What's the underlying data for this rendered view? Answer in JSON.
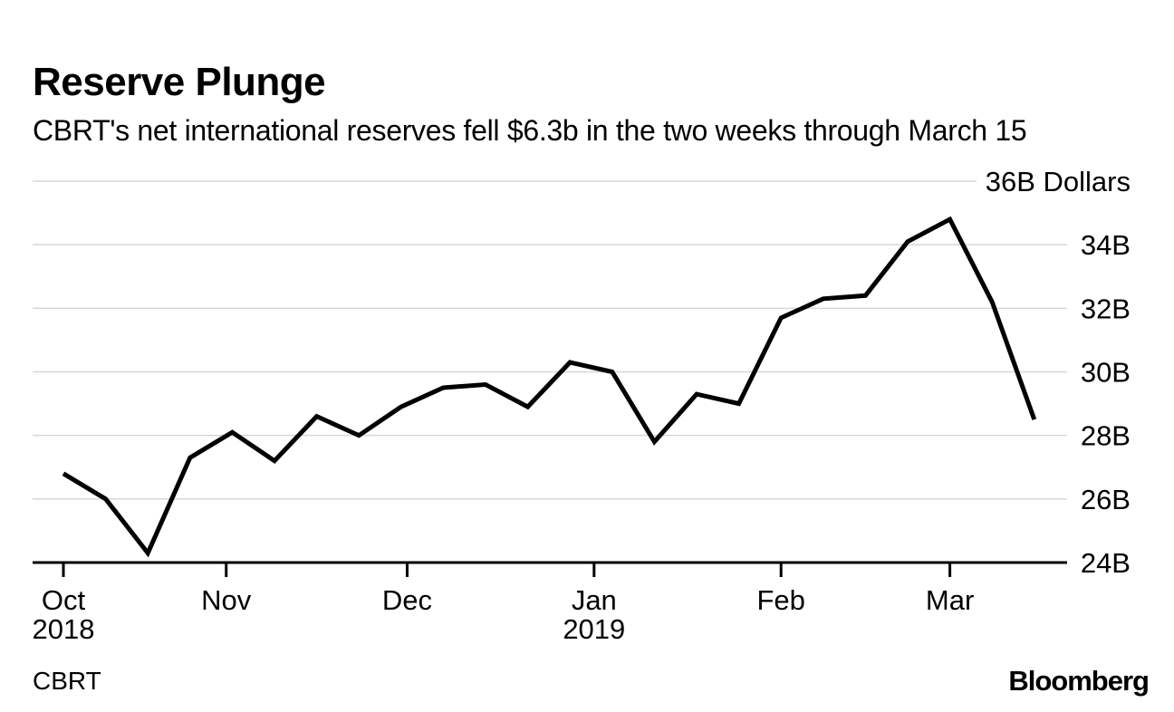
{
  "header": {
    "title": "Reserve Plunge",
    "subtitle": "CBRT's net international reserves fell $6.3b in the two weeks through March 15"
  },
  "footer": {
    "source": "CBRT",
    "brand": "Bloomberg"
  },
  "chart_data": {
    "type": "line",
    "title": "Reserve Plunge",
    "subtitle": "CBRT's net international reserves fell $6.3b in the two weeks through March 15",
    "unit": "Dollars",
    "x": [
      "Oct 5",
      "Oct 12",
      "Oct 19",
      "Oct 26",
      "Nov 2",
      "Nov 9",
      "Nov 16",
      "Nov 23",
      "Nov 30",
      "Dec 7",
      "Dec 14",
      "Dec 21",
      "Dec 28",
      "Jan 4",
      "Jan 11",
      "Jan 18",
      "Jan 25",
      "Feb 1",
      "Feb 8",
      "Feb 15",
      "Feb 22",
      "Mar 1",
      "Mar 8",
      "Mar 15"
    ],
    "series": [
      {
        "name": "CBRT net international reserves (B Dollars)",
        "values": [
          26.8,
          26.0,
          24.3,
          27.3,
          28.1,
          27.2,
          28.6,
          28.0,
          28.9,
          29.5,
          29.6,
          28.9,
          30.3,
          30.0,
          27.8,
          29.3,
          29.0,
          31.7,
          32.3,
          32.4,
          34.1,
          34.8,
          32.2,
          28.5
        ]
      }
    ],
    "ylim": [
      24,
      36
    ],
    "grid": true,
    "legend_position": "none",
    "y_ticks": [
      {
        "value": 24,
        "label": "24B"
      },
      {
        "value": 26,
        "label": "26B"
      },
      {
        "value": 28,
        "label": "28B"
      },
      {
        "value": 30,
        "label": "30B"
      },
      {
        "value": 32,
        "label": "32B"
      },
      {
        "value": 34,
        "label": "34B"
      },
      {
        "value": 36,
        "label": "36B Dollars"
      }
    ],
    "x_ticks": [
      {
        "label": "Oct",
        "sublabel": "2018",
        "week": 0
      },
      {
        "label": "Nov",
        "week": 3.857
      },
      {
        "label": "Dec",
        "week": 8.143
      },
      {
        "label": "Jan",
        "sublabel": "2019",
        "week": 12.571
      },
      {
        "label": "Feb",
        "week": 17
      },
      {
        "label": "Mar",
        "week": 21
      }
    ],
    "colors": {
      "line": "#000000",
      "grid": "#d7d7d7",
      "axis": "#000000",
      "text": "#000000"
    }
  }
}
